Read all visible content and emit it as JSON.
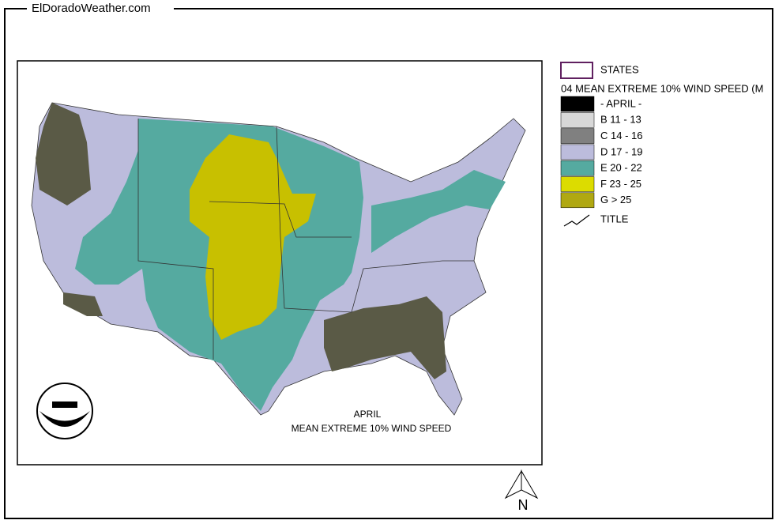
{
  "header": {
    "site": "ElDoradoWeather.com"
  },
  "legend": {
    "states_label": "STATES",
    "layer_title": "04 MEAN EXTREME 10% WIND SPEED (M",
    "items": [
      {
        "label": "- APRIL -",
        "color": "#000000"
      },
      {
        "label": "B 11 - 13",
        "color": "#d8d8d8"
      },
      {
        "label": "C 14 - 16",
        "color": "#808080"
      },
      {
        "label": "D 17 - 19",
        "color": "#bcbcdc"
      },
      {
        "label": "E 20 - 22",
        "color": "#55aaa0"
      },
      {
        "label": "F 23 - 25",
        "color": "#dcdc00"
      },
      {
        "label": "G > 25",
        "color": "#b0a812"
      }
    ],
    "title_label": "TITLE"
  },
  "map": {
    "caption_line1": "APRIL",
    "caption_line2": "MEAN EXTREME 10% WIND SPEED",
    "north": "N"
  }
}
